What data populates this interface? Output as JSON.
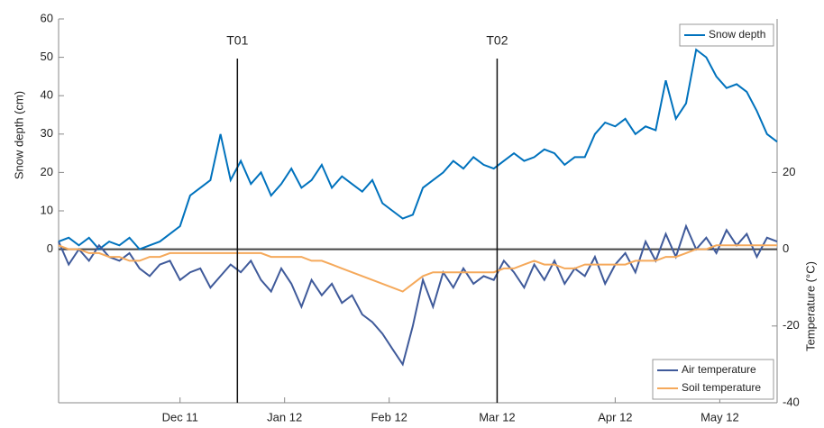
{
  "chart_data": {
    "type": "line",
    "ylabel": "Snow depth (cm)",
    "y2label": "Temperature (°C)",
    "xlim": [
      0,
      213
    ],
    "ylim": [
      -40,
      60
    ],
    "y2lim": [
      -40,
      60
    ],
    "yticks": [
      0,
      10,
      20,
      30,
      40,
      50,
      60
    ],
    "y2ticks": [
      -40,
      -20,
      0,
      20
    ],
    "xticks": [
      {
        "value": 36,
        "label": "Dec 11"
      },
      {
        "value": 67,
        "label": "Jan 12"
      },
      {
        "value": 98,
        "label": "Feb 12"
      },
      {
        "value": 130,
        "label": "Mar 12"
      },
      {
        "value": 165,
        "label": "Apr 12"
      },
      {
        "value": 196,
        "label": "May 12"
      }
    ],
    "annotations": [
      {
        "text": "T01",
        "x": 53
      },
      {
        "text": "T02",
        "x": 130
      }
    ],
    "x": [
      0,
      3,
      6,
      9,
      12,
      15,
      18,
      21,
      24,
      27,
      30,
      33,
      36,
      39,
      42,
      45,
      48,
      51,
      54,
      57,
      60,
      63,
      66,
      69,
      72,
      75,
      78,
      81,
      84,
      87,
      90,
      93,
      96,
      99,
      102,
      105,
      108,
      111,
      114,
      117,
      120,
      123,
      126,
      129,
      132,
      135,
      138,
      141,
      144,
      147,
      150,
      153,
      156,
      159,
      162,
      165,
      168,
      171,
      174,
      177,
      180,
      183,
      186,
      189,
      192,
      195,
      198,
      201,
      204,
      207,
      210,
      213
    ],
    "series": [
      {
        "name": "Snow depth",
        "color": "#0072bd",
        "axis": "y",
        "legend": "northeast",
        "values": [
          2,
          3,
          1,
          3,
          0,
          2,
          1,
          3,
          0,
          1,
          2,
          4,
          6,
          14,
          16,
          18,
          30,
          18,
          23,
          17,
          20,
          14,
          17,
          21,
          16,
          18,
          22,
          16,
          19,
          17,
          15,
          18,
          12,
          10,
          8,
          9,
          16,
          18,
          20,
          23,
          21,
          24,
          22,
          21,
          23,
          25,
          23,
          24,
          26,
          25,
          22,
          24,
          24,
          30,
          33,
          32,
          34,
          30,
          32,
          31,
          44,
          34,
          38,
          52,
          50,
          45,
          42,
          43,
          41,
          36,
          30,
          28
        ]
      },
      {
        "name": "Air temperature",
        "color": "#3f5a9a",
        "axis": "y2",
        "legend": "southeast",
        "values": [
          2,
          -4,
          0,
          -3,
          1,
          -2,
          -3,
          -1,
          -5,
          -7,
          -4,
          -3,
          -8,
          -6,
          -5,
          -10,
          -7,
          -4,
          -6,
          -3,
          -8,
          -11,
          -5,
          -9,
          -15,
          -8,
          -12,
          -9,
          -14,
          -12,
          -17,
          -19,
          -22,
          -26,
          -30,
          -20,
          -8,
          -15,
          -6,
          -10,
          -5,
          -9,
          -7,
          -8,
          -3,
          -6,
          -10,
          -4,
          -8,
          -3,
          -9,
          -5,
          -7,
          -2,
          -9,
          -4,
          -1,
          -6,
          2,
          -3,
          4,
          -2,
          6,
          0,
          3,
          -1,
          5,
          1,
          4,
          -2,
          3,
          2
        ]
      },
      {
        "name": "Soil temperature",
        "color": "#f5a95b",
        "axis": "y2",
        "legend": "southeast",
        "values": [
          1,
          0,
          0,
          -1,
          -1,
          -2,
          -2,
          -3,
          -3,
          -2,
          -2,
          -1,
          -1,
          -1,
          -1,
          -1,
          -1,
          -1,
          -1,
          -1,
          -1,
          -2,
          -2,
          -2,
          -2,
          -3,
          -3,
          -4,
          -5,
          -6,
          -7,
          -8,
          -9,
          -10,
          -11,
          -9,
          -7,
          -6,
          -6,
          -6,
          -6,
          -6,
          -6,
          -6,
          -5,
          -5,
          -4,
          -3,
          -4,
          -4,
          -5,
          -5,
          -4,
          -4,
          -4,
          -4,
          -4,
          -3,
          -3,
          -3,
          -2,
          -2,
          -1,
          0,
          0,
          1,
          1,
          1,
          1,
          1,
          1,
          1
        ]
      }
    ]
  }
}
